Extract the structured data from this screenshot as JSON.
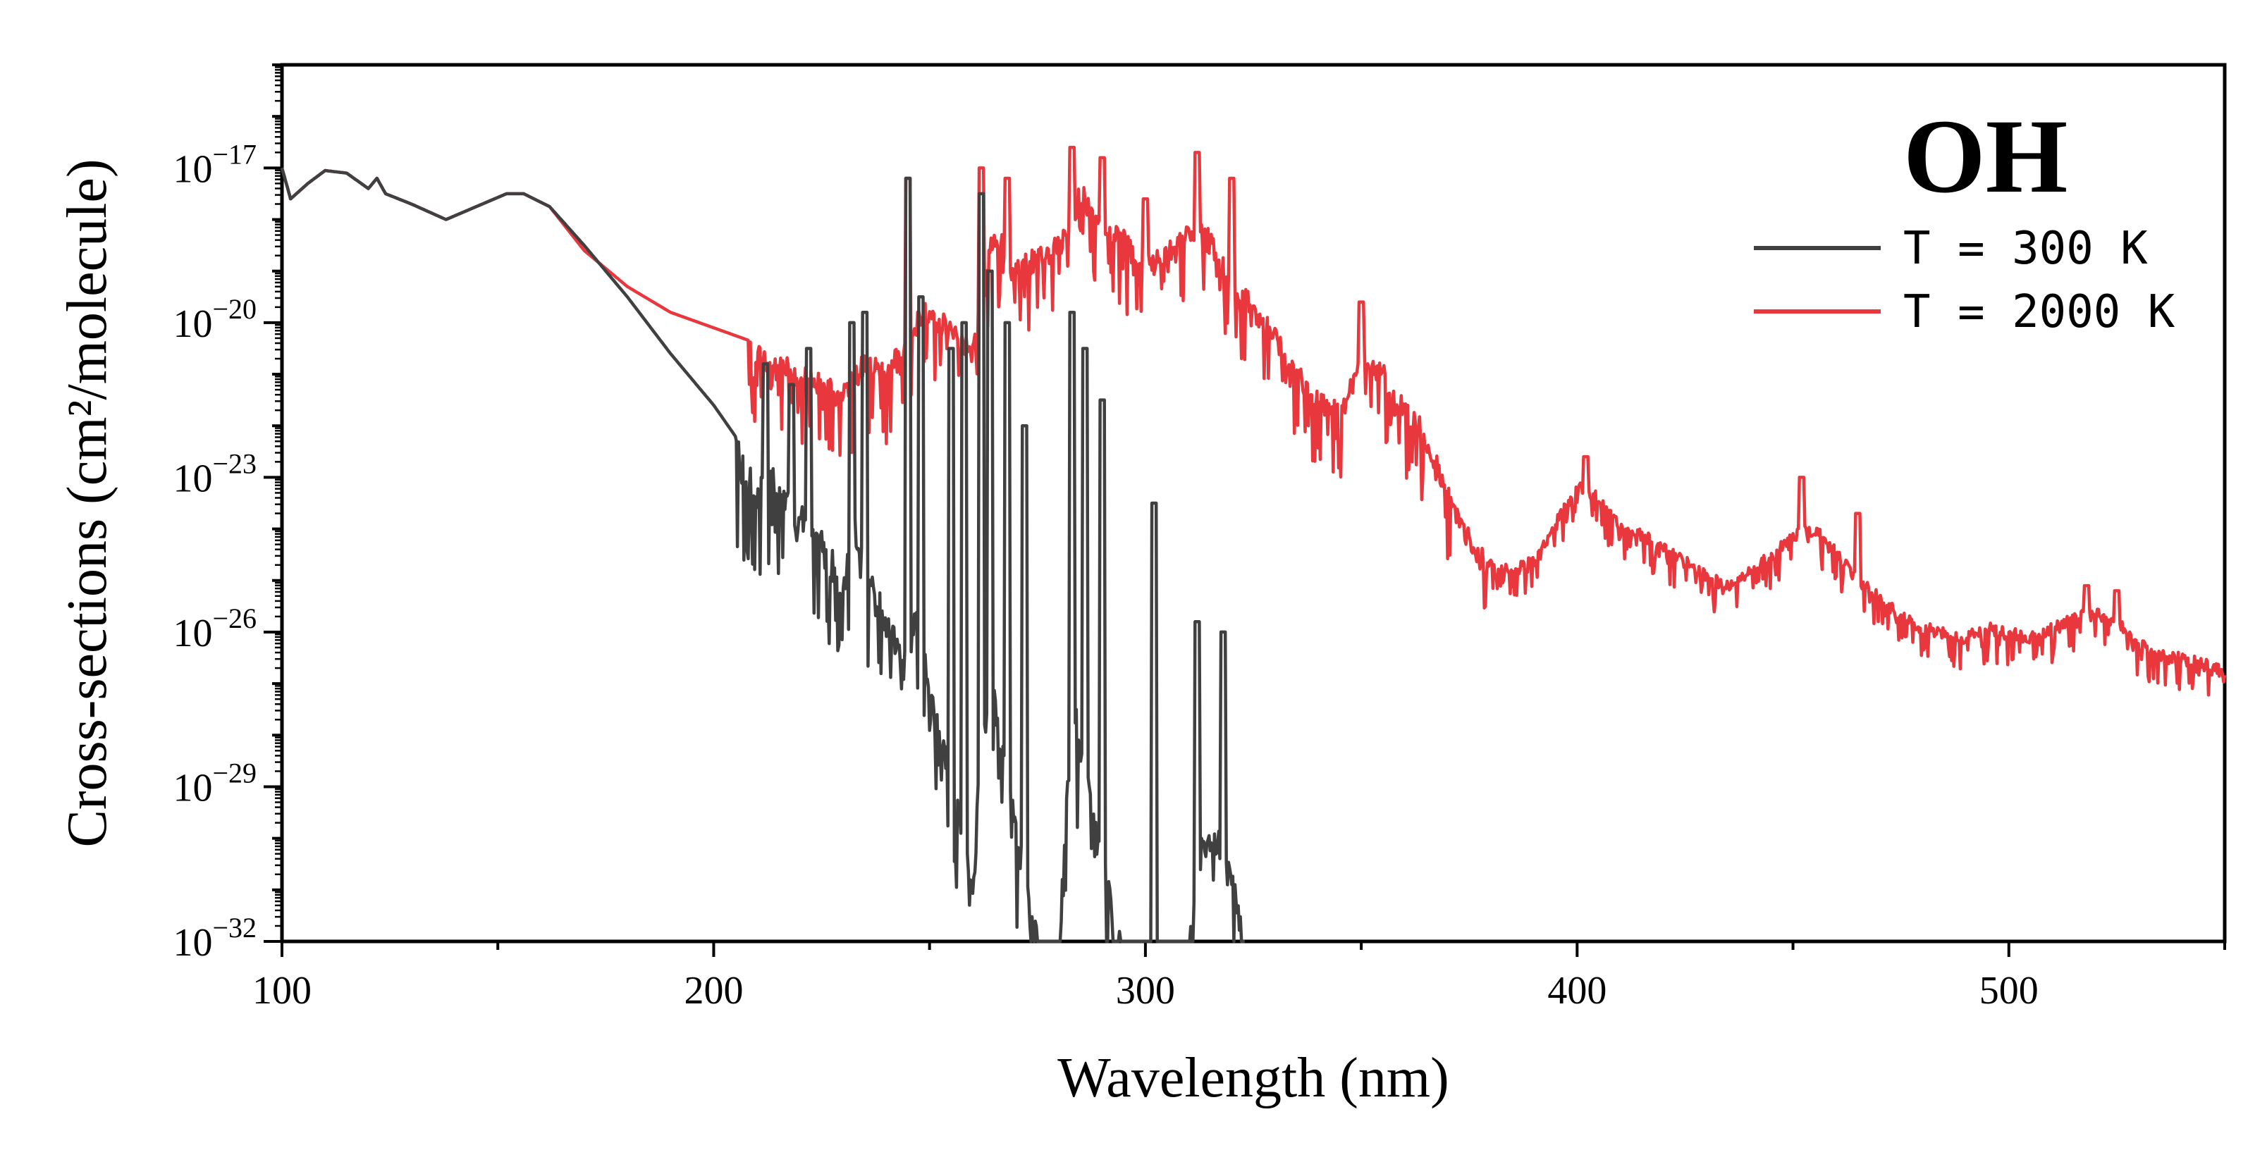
{
  "chart_data": {
    "type": "line",
    "annotation": "OH",
    "xlabel": "Wavelength (nm)",
    "ylabel": "Cross-sections (cm²/molecule)",
    "xlim": [
      100,
      550
    ],
    "ylim": [
      1e-32,
      1e-15
    ],
    "yscale": "log",
    "x_ticks": [
      100,
      200,
      300,
      400,
      500
    ],
    "y_ticks": [
      {
        "exp": -17,
        "base": "10",
        "power": "−17"
      },
      {
        "exp": -20,
        "base": "10",
        "power": "−20"
      },
      {
        "exp": -23,
        "base": "10",
        "power": "−23"
      },
      {
        "exp": -26,
        "base": "10",
        "power": "−26"
      },
      {
        "exp": -29,
        "base": "10",
        "power": "−29"
      },
      {
        "exp": -32,
        "base": "10",
        "power": "−32"
      }
    ],
    "legend_position": "top-right",
    "series": [
      {
        "name": "T  = 300 K",
        "color": "#404040",
        "points": [
          [
            100,
            -17
          ],
          [
            102,
            -17.6
          ],
          [
            106,
            -17.3
          ],
          [
            110,
            -17.05
          ],
          [
            115,
            -17.1
          ],
          [
            120,
            -17.4
          ],
          [
            122,
            -17.2
          ],
          [
            124,
            -17.5
          ],
          [
            130,
            -17.7
          ],
          [
            138,
            -18.0
          ],
          [
            145,
            -17.75
          ],
          [
            152,
            -17.5
          ],
          [
            156,
            -17.5
          ],
          [
            162,
            -17.75
          ],
          [
            170,
            -18.5
          ],
          [
            180,
            -19.5
          ],
          [
            190,
            -20.6
          ],
          [
            200,
            -21.6
          ],
          [
            205,
            -22.2
          ],
          [
            210,
            -22.8
          ],
          [
            212,
            -22.5
          ],
          [
            215,
            -22.9
          ],
          [
            218,
            -23.3
          ],
          [
            220,
            -23.6
          ],
          [
            222,
            -23.4
          ],
          [
            225,
            -24.0
          ],
          [
            230,
            -24.8
          ],
          [
            232,
            -23.5
          ],
          [
            235,
            -24.6
          ],
          [
            240,
            -25.5
          ],
          [
            245,
            -26.5
          ],
          [
            247,
            -25.0
          ],
          [
            250,
            -27.0
          ],
          [
            255,
            -28.5
          ],
          [
            258,
            -29.5
          ],
          [
            260,
            -30.5
          ],
          [
            262,
            -28.0
          ],
          [
            265,
            -27.0
          ],
          [
            268,
            -28.5
          ],
          [
            270,
            -29.5
          ],
          [
            273,
            -31.0
          ],
          [
            276,
            -32.0
          ],
          [
            280,
            -32.0
          ],
          [
            283,
            -27.0
          ],
          [
            286,
            -28.5
          ],
          [
            290,
            -30.0
          ],
          [
            292,
            -31.0
          ],
          [
            295,
            -32.0
          ],
          [
            300,
            -32.0
          ],
          [
            305,
            -32.0
          ],
          [
            310,
            -32.0
          ],
          [
            313,
            -30.0
          ],
          [
            316,
            -29.5
          ],
          [
            320,
            -30.5
          ],
          [
            323,
            -32.0
          ]
        ],
        "peaks": [
          [
            212,
            -20.8
          ],
          [
            218,
            -21.2
          ],
          [
            222,
            -20.5
          ],
          [
            232,
            -20.0
          ],
          [
            235,
            -19.8
          ],
          [
            245,
            -17.2
          ],
          [
            248,
            -19.5
          ],
          [
            255,
            -20.5
          ],
          [
            258,
            -20.0
          ],
          [
            262,
            -17.5
          ],
          [
            264,
            -19.0
          ],
          [
            268,
            -20.0
          ],
          [
            272,
            -22.0
          ],
          [
            283,
            -19.8
          ],
          [
            286,
            -20.5
          ],
          [
            290,
            -21.5
          ],
          [
            302,
            -23.5
          ],
          [
            312,
            -25.8
          ],
          [
            318,
            -26.0
          ]
        ]
      },
      {
        "name": "T  = 2000 K",
        "color": "#e8383d",
        "points": [
          [
            100,
            -17
          ],
          [
            102,
            -17.6
          ],
          [
            106,
            -17.3
          ],
          [
            110,
            -17.05
          ],
          [
            115,
            -17.1
          ],
          [
            120,
            -17.4
          ],
          [
            122,
            -17.2
          ],
          [
            124,
            -17.5
          ],
          [
            130,
            -17.7
          ],
          [
            138,
            -18.0
          ],
          [
            145,
            -17.75
          ],
          [
            152,
            -17.5
          ],
          [
            156,
            -17.5
          ],
          [
            162,
            -17.75
          ],
          [
            170,
            -18.6
          ],
          [
            180,
            -19.3
          ],
          [
            190,
            -19.8
          ],
          [
            200,
            -20.1
          ],
          [
            210,
            -20.4
          ],
          [
            220,
            -20.8
          ],
          [
            230,
            -21.2
          ],
          [
            235,
            -20.5
          ],
          [
            240,
            -20.8
          ],
          [
            245,
            -20.0
          ],
          [
            250,
            -19.5
          ],
          [
            255,
            -20.0
          ],
          [
            260,
            -20.3
          ],
          [
            265,
            -18.0
          ],
          [
            270,
            -18.8
          ],
          [
            275,
            -18.5
          ],
          [
            280,
            -18.3
          ],
          [
            285,
            -17.3
          ],
          [
            290,
            -17.8
          ],
          [
            295,
            -18.2
          ],
          [
            300,
            -18.7
          ],
          [
            305,
            -18.5
          ],
          [
            310,
            -17.9
          ],
          [
            315,
            -18.2
          ],
          [
            320,
            -19.0
          ],
          [
            325,
            -19.5
          ],
          [
            330,
            -20.0
          ],
          [
            335,
            -20.8
          ],
          [
            340,
            -21.2
          ],
          [
            345,
            -21.6
          ],
          [
            350,
            -20.5
          ],
          [
            355,
            -20.8
          ],
          [
            360,
            -21.4
          ],
          [
            365,
            -22.0
          ],
          [
            370,
            -23.0
          ],
          [
            375,
            -24.0
          ],
          [
            380,
            -24.6
          ],
          [
            385,
            -24.7
          ],
          [
            390,
            -24.5
          ],
          [
            395,
            -23.8
          ],
          [
            400,
            -23.0
          ],
          [
            405,
            -23.3
          ],
          [
            410,
            -23.8
          ],
          [
            415,
            -24.0
          ],
          [
            420,
            -24.2
          ],
          [
            425,
            -24.5
          ],
          [
            430,
            -24.8
          ],
          [
            435,
            -25.0
          ],
          [
            440,
            -24.7
          ],
          [
            445,
            -24.4
          ],
          [
            450,
            -24.0
          ],
          [
            455,
            -23.9
          ],
          [
            460,
            -24.3
          ],
          [
            465,
            -24.9
          ],
          [
            470,
            -25.2
          ],
          [
            475,
            -25.6
          ],
          [
            480,
            -25.8
          ],
          [
            485,
            -25.9
          ],
          [
            490,
            -26.0
          ],
          [
            495,
            -25.8
          ],
          [
            500,
            -25.9
          ],
          [
            505,
            -26.0
          ],
          [
            510,
            -25.8
          ],
          [
            515,
            -25.6
          ],
          [
            520,
            -25.5
          ],
          [
            525,
            -25.7
          ],
          [
            530,
            -26.1
          ],
          [
            535,
            -26.3
          ],
          [
            540,
            -26.4
          ],
          [
            545,
            -26.5
          ],
          [
            550,
            -26.6
          ]
        ],
        "peaks": [
          [
            245,
            -17.2
          ],
          [
            262,
            -17.0
          ],
          [
            268,
            -17.2
          ],
          [
            283,
            -16.6
          ],
          [
            290,
            -16.8
          ],
          [
            300,
            -17.6
          ],
          [
            312,
            -16.7
          ],
          [
            320,
            -17.2
          ],
          [
            350,
            -19.6
          ],
          [
            402,
            -22.6
          ],
          [
            452,
            -23.0
          ],
          [
            465,
            -23.7
          ],
          [
            518,
            -25.1
          ],
          [
            525,
            -25.2
          ]
        ]
      }
    ]
  }
}
